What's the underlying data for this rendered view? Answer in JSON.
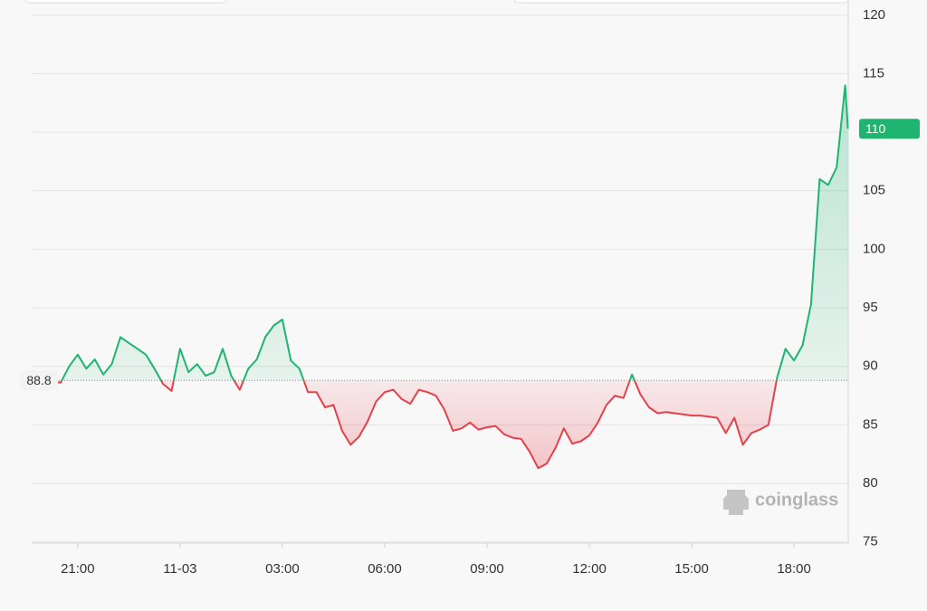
{
  "chart_data": {
    "type": "baseline",
    "x": [
      19.75,
      20,
      20.25,
      20.5,
      20.75,
      21,
      21.25,
      21.5,
      21.75,
      22,
      22.25,
      22.5,
      22.75,
      23,
      23.25,
      23.5,
      23.75,
      24,
      24.25,
      24.5,
      24.75,
      25,
      25.25,
      25.5,
      25.75,
      26,
      26.25,
      26.5,
      26.75,
      27,
      27.25,
      27.5,
      27.75,
      28,
      28.25,
      28.5,
      28.75,
      29,
      29.25,
      29.5,
      29.75,
      30,
      30.25,
      30.5,
      30.75,
      31,
      31.25,
      31.5,
      31.75,
      32,
      32.25,
      32.5,
      32.75,
      33,
      33.25,
      33.5,
      33.75,
      34,
      34.25,
      34.5,
      34.75,
      35,
      35.25,
      35.5,
      35.75,
      36,
      36.25,
      36.5,
      36.75,
      37,
      37.25,
      37.5,
      37.75,
      38,
      38.25,
      38.5,
      38.75,
      39,
      39.25,
      39.5,
      39.75,
      40,
      40.25,
      40.5,
      40.75,
      41,
      41.25,
      41.5,
      41.75,
      42,
      42.25,
      42.5,
      42.75,
      43,
      43.25,
      43.5,
      43.58
    ],
    "values": [
      89.2,
      89.5,
      88.7,
      88.6,
      90.0,
      91.0,
      89.8,
      90.6,
      89.3,
      90.2,
      92.5,
      92.0,
      91.5,
      91.0,
      89.8,
      88.5,
      87.9,
      91.5,
      89.5,
      90.2,
      89.2,
      89.5,
      91.5,
      89.2,
      88.0,
      89.8,
      90.6,
      92.5,
      93.5,
      94.0,
      90.5,
      89.8,
      87.8,
      87.8,
      86.5,
      86.7,
      84.5,
      83.3,
      84.0,
      85.3,
      87.0,
      87.8,
      88.0,
      87.2,
      86.8,
      88.0,
      87.8,
      87.5,
      86.3,
      84.5,
      84.7,
      85.2,
      84.6,
      84.8,
      84.9,
      84.2,
      83.9,
      83.8,
      82.7,
      81.3,
      81.7,
      83.0,
      84.7,
      83.4,
      83.6,
      84.1,
      85.2,
      86.7,
      87.5,
      87.3,
      89.3,
      87.6,
      86.5,
      86.0,
      86.1,
      86.0,
      85.9,
      85.8,
      85.8,
      85.7,
      85.6,
      84.3,
      85.6,
      83.3,
      84.3,
      84.6,
      85.0,
      89.0,
      91.5,
      90.5,
      91.8,
      95.3,
      106.0,
      105.5,
      107.0,
      114.0,
      110.3
    ],
    "baseline": 88.8,
    "up_color": "#1fb46f",
    "down_color": "#e8404b",
    "current": {
      "value": 110.3,
      "label": "110"
    },
    "xlim": [
      19.65,
      43.59
    ],
    "xticks": [
      {
        "value": 21,
        "label": "21:00"
      },
      {
        "value": 24,
        "label": "11-03"
      },
      {
        "value": 27,
        "label": "03:00"
      },
      {
        "value": 30,
        "label": "06:00"
      },
      {
        "value": 33,
        "label": "09:00"
      },
      {
        "value": 36,
        "label": "12:00"
      },
      {
        "value": 39,
        "label": "15:00"
      },
      {
        "value": 42,
        "label": "18:00"
      }
    ],
    "ylim": [
      74.9,
      121.3
    ],
    "yticks": [
      75,
      80,
      85,
      90,
      95,
      100,
      105,
      110,
      115,
      120
    ],
    "grid": true,
    "watermark": "coinglass"
  }
}
